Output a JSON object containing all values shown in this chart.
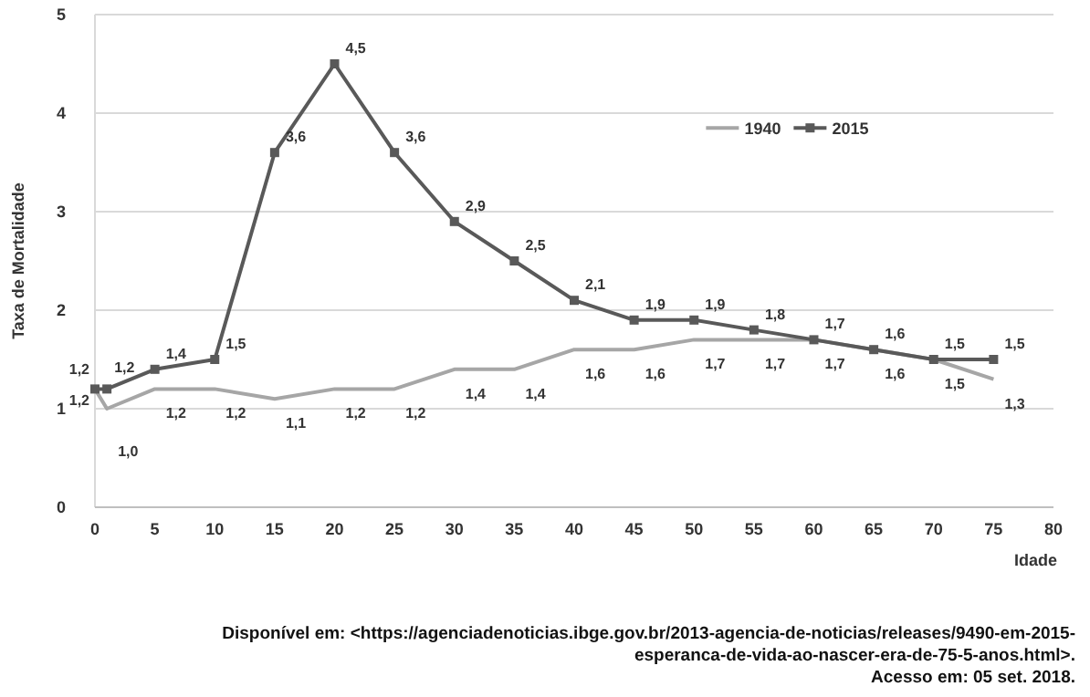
{
  "chart_data": {
    "type": "line",
    "xlabel": "Idade",
    "ylabel": "Taxa de Mortalidade",
    "x": [
      0,
      1,
      5,
      10,
      15,
      20,
      25,
      30,
      35,
      40,
      45,
      50,
      55,
      60,
      65,
      70,
      75
    ],
    "series": [
      {
        "name": "1940",
        "color": "#a6a6a6",
        "marker": "none",
        "values": [
          1.2,
          1.0,
          1.2,
          1.2,
          1.1,
          1.2,
          1.2,
          1.4,
          1.4,
          1.6,
          1.6,
          1.7,
          1.7,
          1.7,
          1.6,
          1.5,
          1.3
        ],
        "value_labels": [
          "1,2",
          "1,0",
          "1,2",
          "1,2",
          "1,1",
          "1,2",
          "1,2",
          "1,4",
          "1,4",
          "1,6",
          "1,6",
          "1,7",
          "1,7",
          "1,7",
          "1,6",
          "1,5",
          "1,3"
        ]
      },
      {
        "name": "2015",
        "color": "#595959",
        "marker": "square",
        "values": [
          1.2,
          1.2,
          1.4,
          1.5,
          3.6,
          4.5,
          3.6,
          2.9,
          2.5,
          2.1,
          1.9,
          1.9,
          1.8,
          1.7,
          1.6,
          1.5,
          1.5
        ],
        "value_labels": [
          "1,2",
          "1,2",
          "1,4",
          "1,5",
          "3,6",
          "4,5",
          "3,6",
          "2,9",
          "2,5",
          "2,1",
          "1,9",
          "1,9",
          "1,8",
          "1,7",
          "1,6",
          "1,5",
          "1,5"
        ]
      }
    ],
    "xlim": [
      0,
      80
    ],
    "xticks": [
      0,
      5,
      10,
      15,
      20,
      25,
      30,
      35,
      40,
      45,
      50,
      55,
      60,
      65,
      70,
      75,
      80
    ],
    "ylim": [
      0,
      5
    ],
    "yticks": [
      0,
      1,
      2,
      3,
      4,
      5
    ],
    "grid": "y",
    "legend": "top right",
    "line_style": "solid",
    "annotations": [
      "Disponível em: <https://agenciadenoticias.ibge.gov.br/2013-agencia-de-noticias/releases/9490-em-2015-",
      "esperanca-de-vida-ao-nascer-era-de-75-5-anos.html>.",
      "Acesso em: 05 set. 2018."
    ]
  }
}
